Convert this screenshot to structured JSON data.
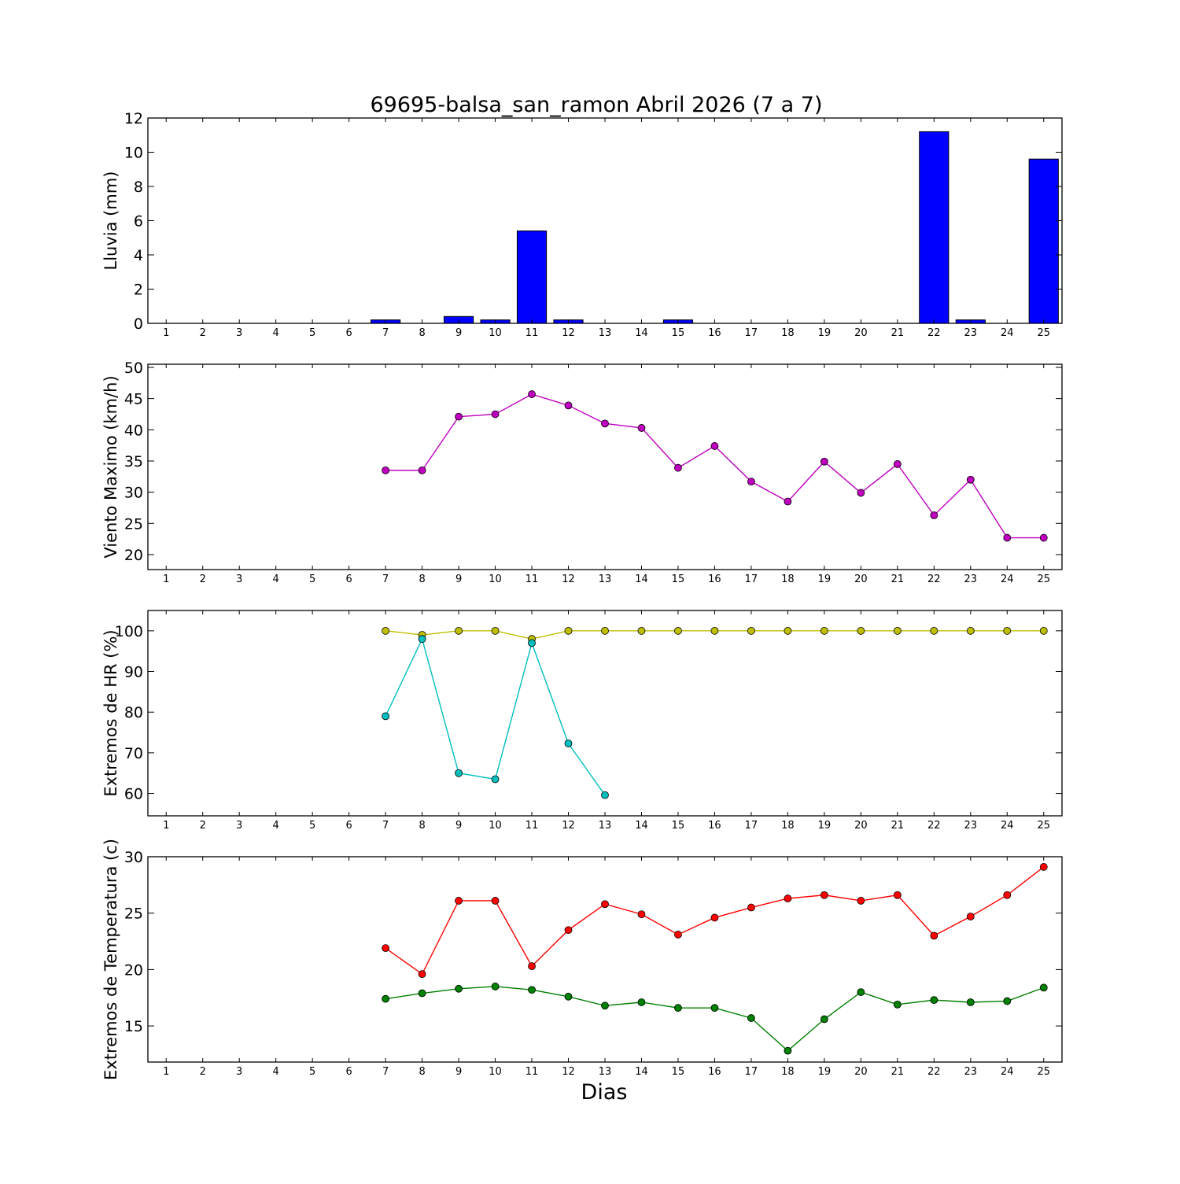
{
  "chart_data": [
    {
      "type": "bar",
      "title": "69695-balsa_san_ramon Abril 2026  (7 a 7)",
      "ylabel": "Lluvia (mm)",
      "xlabel": "",
      "x": [
        1,
        2,
        3,
        4,
        5,
        6,
        7,
        8,
        9,
        10,
        11,
        12,
        13,
        14,
        15,
        16,
        17,
        18,
        19,
        20,
        21,
        22,
        23,
        24,
        25
      ],
      "xlim": [
        0.5,
        25.5
      ],
      "ylim": [
        0,
        12
      ],
      "yticks": [
        0,
        2,
        4,
        6,
        8,
        10,
        12
      ],
      "series": [
        {
          "color": "#0000ff",
          "values": [
            null,
            null,
            null,
            null,
            null,
            null,
            0.2,
            0,
            0.4,
            0.2,
            5.4,
            0.2,
            0,
            0,
            0.2,
            0,
            0,
            0,
            0,
            0,
            0,
            11.2,
            0.2,
            0,
            9.6
          ]
        }
      ]
    },
    {
      "type": "line",
      "title": "",
      "ylabel": "Viento Maximo (km/h)",
      "xlabel": "",
      "x": [
        1,
        2,
        3,
        4,
        5,
        6,
        7,
        8,
        9,
        10,
        11,
        12,
        13,
        14,
        15,
        16,
        17,
        18,
        19,
        20,
        21,
        22,
        23,
        24,
        25
      ],
      "xlim": [
        0.5,
        25.5
      ],
      "ylim": [
        17.6,
        50.5
      ],
      "yticks": [
        20,
        25,
        30,
        35,
        40,
        45,
        50
      ],
      "series": [
        {
          "color": "#bf00bf",
          "values": [
            null,
            null,
            null,
            null,
            null,
            null,
            33.5,
            33.5,
            42.1,
            42.5,
            45.7,
            43.9,
            41.0,
            40.3,
            33.9,
            37.4,
            31.7,
            28.5,
            34.9,
            29.9,
            34.5,
            26.3,
            32.0,
            22.7,
            22.7
          ]
        }
      ]
    },
    {
      "type": "line",
      "title": "",
      "ylabel": "Extremos de HR (%)",
      "xlabel": "",
      "x": [
        1,
        2,
        3,
        4,
        5,
        6,
        7,
        8,
        9,
        10,
        11,
        12,
        13,
        14,
        15,
        16,
        17,
        18,
        19,
        20,
        21,
        22,
        23,
        24,
        25
      ],
      "xlim": [
        0.5,
        25.5
      ],
      "ylim": [
        54.5,
        105
      ],
      "yticks": [
        60,
        70,
        80,
        90,
        100
      ],
      "series": [
        {
          "color": "#bfbf00",
          "values": [
            null,
            null,
            null,
            null,
            null,
            null,
            100,
            99,
            100,
            100,
            98,
            100,
            100,
            100,
            100,
            100,
            100,
            100,
            100,
            100,
            100,
            100,
            100,
            100,
            100
          ]
        },
        {
          "color": "#00bfbf",
          "values": [
            null,
            null,
            null,
            null,
            null,
            null,
            79,
            98,
            65,
            63.5,
            97,
            72.3,
            59.6,
            null,
            null,
            null,
            null,
            null,
            null,
            null,
            null,
            null,
            null,
            null,
            null
          ]
        }
      ]
    },
    {
      "type": "line",
      "title": "",
      "ylabel": "Extremos de Temperatura (c)",
      "xlabel": "Dias",
      "x": [
        1,
        2,
        3,
        4,
        5,
        6,
        7,
        8,
        9,
        10,
        11,
        12,
        13,
        14,
        15,
        16,
        17,
        18,
        19,
        20,
        21,
        22,
        23,
        24,
        25
      ],
      "xlim": [
        0.5,
        25.5
      ],
      "ylim": [
        11.8,
        30
      ],
      "yticks": [
        15,
        20,
        25,
        30
      ],
      "series": [
        {
          "color": "#ff0000",
          "values": [
            null,
            null,
            null,
            null,
            null,
            null,
            21.9,
            19.6,
            26.1,
            26.1,
            20.3,
            23.5,
            25.8,
            24.9,
            23.1,
            24.6,
            25.5,
            26.3,
            26.6,
            26.1,
            26.6,
            23.0,
            24.7,
            26.6,
            29.1
          ]
        },
        {
          "color": "#008000",
          "values": [
            null,
            null,
            null,
            null,
            null,
            null,
            17.4,
            17.9,
            18.3,
            18.5,
            18.2,
            17.6,
            16.8,
            17.1,
            16.6,
            16.6,
            15.7,
            12.8,
            15.6,
            18.0,
            16.9,
            17.3,
            17.1,
            17.2,
            18.4
          ]
        }
      ]
    }
  ]
}
